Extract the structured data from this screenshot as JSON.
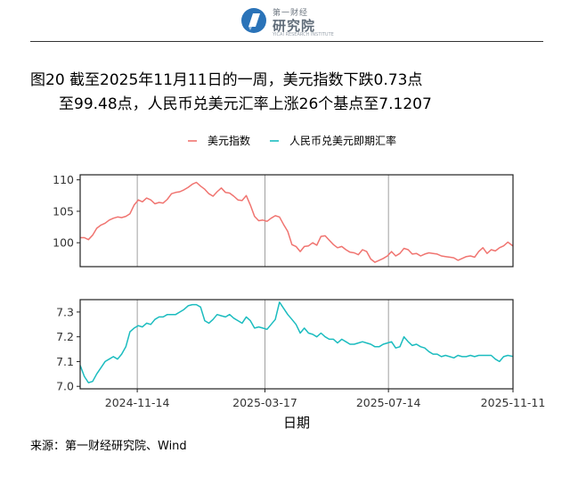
{
  "header": {
    "logo_line1": "第一财经",
    "logo_name": "研究院",
    "logo_sub": "YICAI RESEARCH INSTITUTE"
  },
  "title": {
    "line1": "图20  截至2025年11月11日的一周，美元指数下跌0.73点",
    "line2": "至99.48点，人民币兑美元汇率上涨26个基点至7.1207"
  },
  "source": "来源：第一财经研究院、Wind",
  "colors": {
    "usd": "#f07470",
    "cny": "#1bbcbf",
    "frame": "#222222",
    "vline": "#888888"
  },
  "chart_data": {
    "type": "line",
    "legend": {
      "position": "top",
      "entries": [
        "美元指数",
        "人民币兑美元即期汇率"
      ]
    },
    "xlabel": "日期",
    "x_range": [
      "2024-09-20",
      "2025-11-11"
    ],
    "x_ticks": [
      "2024-11-14",
      "2025-03-17",
      "2025-07-14",
      "2025-11-11"
    ],
    "panels": [
      {
        "series_name": "美元指数",
        "yticks": [
          100,
          105,
          110
        ],
        "ylim": [
          96.2,
          110.8
        ],
        "x": [
          "2024-09-20",
          "2024-09-24",
          "2024-09-28",
          "2024-10-02",
          "2024-10-06",
          "2024-10-10",
          "2024-10-14",
          "2024-10-18",
          "2024-10-22",
          "2024-10-26",
          "2024-10-30",
          "2024-11-03",
          "2024-11-07",
          "2024-11-11",
          "2024-11-15",
          "2024-11-19",
          "2024-11-23",
          "2024-11-27",
          "2024-12-01",
          "2024-12-05",
          "2024-12-09",
          "2024-12-13",
          "2024-12-17",
          "2024-12-21",
          "2024-12-25",
          "2024-12-29",
          "2025-01-02",
          "2025-01-06",
          "2025-01-10",
          "2025-01-14",
          "2025-01-18",
          "2025-01-22",
          "2025-01-26",
          "2025-01-30",
          "2025-02-03",
          "2025-02-07",
          "2025-02-11",
          "2025-02-15",
          "2025-02-19",
          "2025-02-23",
          "2025-02-27",
          "2025-03-03",
          "2025-03-07",
          "2025-03-11",
          "2025-03-15",
          "2025-03-19",
          "2025-03-23",
          "2025-03-27",
          "2025-03-31",
          "2025-04-04",
          "2025-04-08",
          "2025-04-12",
          "2025-04-16",
          "2025-04-20",
          "2025-04-24",
          "2025-04-28",
          "2025-05-02",
          "2025-05-06",
          "2025-05-10",
          "2025-05-14",
          "2025-05-18",
          "2025-05-22",
          "2025-05-26",
          "2025-05-30",
          "2025-06-03",
          "2025-06-07",
          "2025-06-11",
          "2025-06-15",
          "2025-06-19",
          "2025-06-23",
          "2025-06-27",
          "2025-07-01",
          "2025-07-05",
          "2025-07-09",
          "2025-07-13",
          "2025-07-17",
          "2025-07-21",
          "2025-07-25",
          "2025-07-29",
          "2025-08-02",
          "2025-08-06",
          "2025-08-10",
          "2025-08-14",
          "2025-08-18",
          "2025-08-22",
          "2025-08-26",
          "2025-08-30",
          "2025-09-03",
          "2025-09-07",
          "2025-09-11",
          "2025-09-15",
          "2025-09-19",
          "2025-09-23",
          "2025-09-27",
          "2025-10-01",
          "2025-10-05",
          "2025-10-09",
          "2025-10-13",
          "2025-10-17",
          "2025-10-21",
          "2025-10-25",
          "2025-10-29",
          "2025-11-02",
          "2025-11-06",
          "2025-11-11"
        ],
        "values": [
          100.8,
          100.8,
          100.5,
          101.2,
          102.3,
          102.8,
          103.1,
          103.6,
          103.9,
          104.1,
          104.0,
          104.2,
          104.6,
          106.0,
          106.8,
          106.5,
          107.1,
          106.8,
          106.2,
          106.4,
          106.3,
          106.9,
          107.8,
          108.0,
          108.1,
          108.4,
          108.8,
          109.3,
          109.6,
          109.0,
          108.5,
          107.8,
          107.4,
          108.1,
          108.7,
          108.0,
          107.9,
          107.4,
          106.8,
          106.7,
          107.5,
          106.0,
          104.2,
          103.5,
          103.6,
          103.4,
          103.9,
          104.3,
          104.1,
          102.9,
          101.8,
          99.7,
          99.4,
          98.6,
          99.4,
          99.5,
          100.0,
          99.6,
          101.0,
          101.1,
          100.4,
          99.7,
          99.2,
          99.4,
          98.9,
          98.5,
          98.4,
          98.1,
          98.9,
          98.6,
          97.4,
          96.9,
          97.2,
          97.5,
          97.9,
          98.6,
          97.9,
          98.3,
          99.1,
          98.9,
          98.2,
          98.3,
          97.9,
          98.2,
          98.4,
          98.3,
          98.2,
          97.9,
          97.8,
          97.7,
          97.6,
          97.2,
          97.5,
          97.8,
          97.9,
          97.7,
          98.6,
          99.2,
          98.3,
          98.9,
          98.7,
          99.2,
          99.5,
          100.1,
          99.48
        ]
      },
      {
        "series_name": "人民币兑美元即期汇率",
        "yticks": [
          7.0,
          7.1,
          7.2,
          7.3
        ],
        "ylim": [
          6.99,
          7.35
        ],
        "x": [
          "2024-09-20",
          "2024-09-24",
          "2024-09-28",
          "2024-10-02",
          "2024-10-06",
          "2024-10-10",
          "2024-10-14",
          "2024-10-18",
          "2024-10-22",
          "2024-10-26",
          "2024-10-30",
          "2024-11-03",
          "2024-11-07",
          "2024-11-11",
          "2024-11-15",
          "2024-11-19",
          "2024-11-23",
          "2024-11-27",
          "2024-12-01",
          "2024-12-05",
          "2024-12-09",
          "2024-12-13",
          "2024-12-17",
          "2024-12-21",
          "2024-12-25",
          "2024-12-29",
          "2025-01-02",
          "2025-01-06",
          "2025-01-10",
          "2025-01-14",
          "2025-01-18",
          "2025-01-22",
          "2025-01-26",
          "2025-01-30",
          "2025-02-03",
          "2025-02-07",
          "2025-02-11",
          "2025-02-15",
          "2025-02-19",
          "2025-02-23",
          "2025-02-27",
          "2025-03-03",
          "2025-03-07",
          "2025-03-11",
          "2025-03-15",
          "2025-03-19",
          "2025-03-23",
          "2025-03-27",
          "2025-03-31",
          "2025-04-04",
          "2025-04-08",
          "2025-04-12",
          "2025-04-16",
          "2025-04-20",
          "2025-04-24",
          "2025-04-28",
          "2025-05-02",
          "2025-05-06",
          "2025-05-10",
          "2025-05-14",
          "2025-05-18",
          "2025-05-22",
          "2025-05-26",
          "2025-05-30",
          "2025-06-03",
          "2025-06-07",
          "2025-06-11",
          "2025-06-15",
          "2025-06-19",
          "2025-06-23",
          "2025-06-27",
          "2025-07-01",
          "2025-07-05",
          "2025-07-09",
          "2025-07-13",
          "2025-07-17",
          "2025-07-21",
          "2025-07-25",
          "2025-07-29",
          "2025-08-02",
          "2025-08-06",
          "2025-08-10",
          "2025-08-14",
          "2025-08-18",
          "2025-08-22",
          "2025-08-26",
          "2025-08-30",
          "2025-09-03",
          "2025-09-07",
          "2025-09-11",
          "2025-09-15",
          "2025-09-19",
          "2025-09-23",
          "2025-09-27",
          "2025-10-01",
          "2025-10-05",
          "2025-10-09",
          "2025-10-13",
          "2025-10-17",
          "2025-10-21",
          "2025-10-25",
          "2025-10-29",
          "2025-11-02",
          "2025-11-06",
          "2025-11-11"
        ],
        "values": [
          7.085,
          7.04,
          7.015,
          7.02,
          7.05,
          7.075,
          7.1,
          7.11,
          7.12,
          7.11,
          7.13,
          7.16,
          7.22,
          7.235,
          7.245,
          7.24,
          7.255,
          7.25,
          7.27,
          7.28,
          7.28,
          7.29,
          7.29,
          7.29,
          7.3,
          7.31,
          7.325,
          7.33,
          7.33,
          7.32,
          7.265,
          7.255,
          7.27,
          7.29,
          7.285,
          7.28,
          7.29,
          7.275,
          7.265,
          7.255,
          7.28,
          7.265,
          7.235,
          7.24,
          7.235,
          7.23,
          7.25,
          7.27,
          7.34,
          7.315,
          7.29,
          7.27,
          7.25,
          7.215,
          7.235,
          7.215,
          7.21,
          7.2,
          7.215,
          7.2,
          7.19,
          7.19,
          7.175,
          7.19,
          7.18,
          7.17,
          7.17,
          7.175,
          7.18,
          7.175,
          7.17,
          7.16,
          7.16,
          7.17,
          7.175,
          7.18,
          7.155,
          7.16,
          7.2,
          7.18,
          7.165,
          7.17,
          7.16,
          7.155,
          7.14,
          7.13,
          7.13,
          7.12,
          7.125,
          7.12,
          7.115,
          7.125,
          7.12,
          7.12,
          7.125,
          7.12,
          7.125,
          7.125,
          7.125,
          7.125,
          7.11,
          7.1,
          7.12,
          7.125,
          7.1207
        ]
      }
    ]
  }
}
